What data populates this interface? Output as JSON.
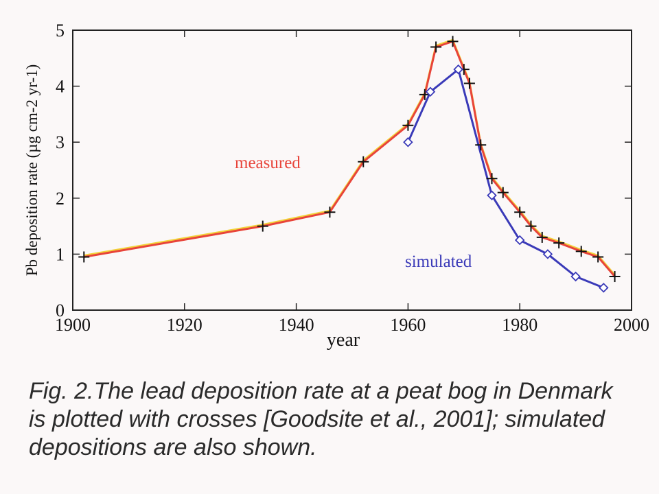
{
  "chart_data": {
    "type": "line",
    "xlabel": "year",
    "ylabel": "Pb deposition rate (µg cm-2 yr-1)",
    "xlim": [
      1900,
      2000
    ],
    "ylim": [
      0,
      5
    ],
    "xticks": [
      1900,
      1920,
      1940,
      1960,
      1980,
      2000
    ],
    "yticks": [
      0,
      1,
      2,
      3,
      4,
      5
    ],
    "series": [
      {
        "name": "measured",
        "color": "#e8443a",
        "marker": "cross",
        "x": [
          1902,
          1934,
          1946,
          1952,
          1960,
          1963,
          1965,
          1968,
          1970,
          1971,
          1973,
          1975,
          1977,
          1980,
          1982,
          1984,
          1987,
          1991,
          1994,
          1997
        ],
        "y": [
          0.95,
          1.5,
          1.75,
          2.65,
          3.3,
          3.85,
          4.7,
          4.8,
          4.3,
          4.05,
          2.95,
          2.35,
          2.1,
          1.75,
          1.5,
          1.3,
          1.2,
          1.05,
          0.95,
          0.6
        ]
      },
      {
        "name": "simulated",
        "color": "#3a3ab8",
        "marker": "diamond",
        "x": [
          1960,
          1964,
          1969,
          1975,
          1980,
          1985,
          1990,
          1995
        ],
        "y": [
          3.0,
          3.9,
          4.3,
          2.05,
          1.25,
          1.0,
          0.6,
          0.4
        ]
      }
    ],
    "annotations": [
      {
        "text": "measured",
        "color": "#e8443a"
      },
      {
        "text": "simulated",
        "color": "#3a3ab8"
      }
    ],
    "caption": "Fig. 2.The lead deposition rate at a peat bog in Denmark is plotted with crosses [Goodsite et al., 2001]; simulated depositions are also shown."
  }
}
